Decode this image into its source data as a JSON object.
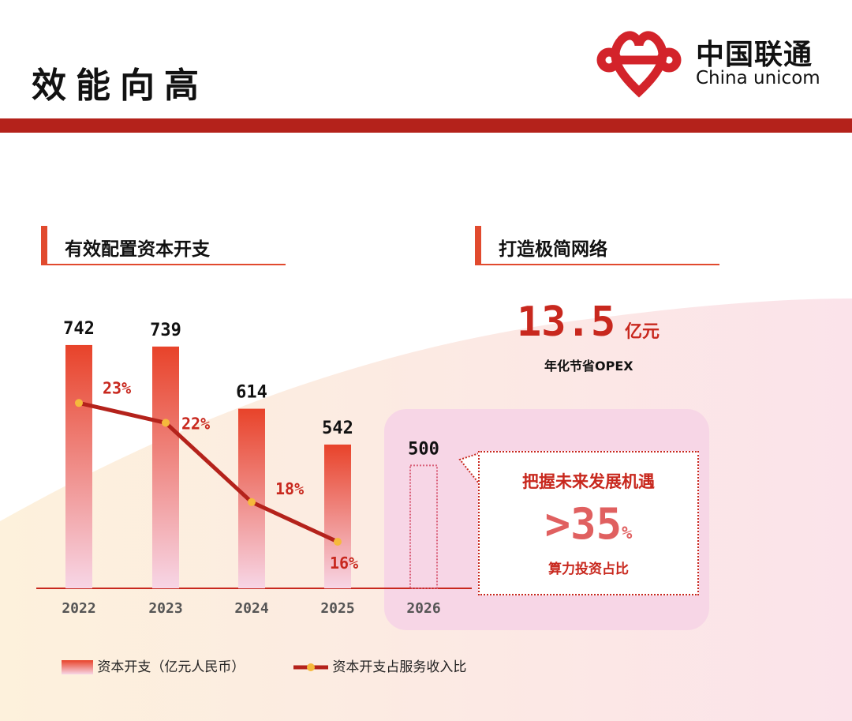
{
  "header": {
    "title": "效能向高",
    "logo_cn": "中国联通",
    "logo_en": "China unicom"
  },
  "left_section": {
    "title": "有效配置资本开支"
  },
  "right_section": {
    "title": "打造极简网络",
    "opex_value": "13.5",
    "opex_unit": "亿元",
    "opex_label": "年化节省OPEX"
  },
  "callout": {
    "title": "把握未来发展机遇",
    "value": ">35",
    "value_unit": "%",
    "subtitle": "算力投资占比"
  },
  "colors": {
    "brand_red": "#b4221b",
    "accent": "#e14a2e",
    "line": "#b4221b",
    "marker": "#f5b93c",
    "highlight_bg": "#f7d6e6"
  },
  "chart_data": {
    "type": "bar+line",
    "categories": [
      "2022",
      "2023",
      "2024",
      "2025",
      "2026"
    ],
    "series": [
      {
        "name": "资本开支（亿元人民币）",
        "type": "bar",
        "values": [
          742,
          739,
          614,
          542,
          500
        ],
        "labels": [
          "742",
          "739",
          "614",
          "542",
          "500"
        ],
        "projected": [
          false,
          false,
          false,
          false,
          true
        ]
      },
      {
        "name": "资本开支占服务收入比",
        "type": "line",
        "values": [
          23,
          22,
          18,
          16,
          null
        ],
        "labels": [
          "23%",
          "22%",
          "18%",
          "16%",
          ""
        ]
      }
    ],
    "grid": false,
    "legend": "bottom-left"
  }
}
